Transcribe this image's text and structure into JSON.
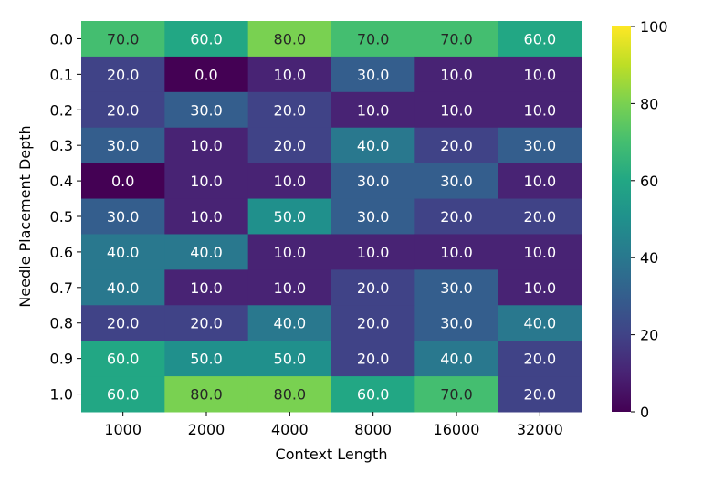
{
  "chart_data": {
    "type": "heatmap",
    "title": "",
    "xlabel": "Context Length",
    "ylabel": "Needle Placement Depth",
    "x": [
      "1000",
      "2000",
      "4000",
      "8000",
      "16000",
      "32000"
    ],
    "y": [
      "0.0",
      "0.1",
      "0.2",
      "0.3",
      "0.4",
      "0.5",
      "0.6",
      "0.7",
      "0.8",
      "0.9",
      "1.0"
    ],
    "values": [
      [
        70.0,
        60.0,
        80.0,
        70.0,
        70.0,
        60.0
      ],
      [
        20.0,
        0.0,
        10.0,
        30.0,
        10.0,
        10.0
      ],
      [
        20.0,
        30.0,
        20.0,
        10.0,
        10.0,
        10.0
      ],
      [
        30.0,
        10.0,
        20.0,
        40.0,
        20.0,
        30.0
      ],
      [
        0.0,
        10.0,
        10.0,
        30.0,
        30.0,
        10.0
      ],
      [
        30.0,
        10.0,
        50.0,
        30.0,
        20.0,
        20.0
      ],
      [
        40.0,
        40.0,
        10.0,
        10.0,
        10.0,
        10.0
      ],
      [
        40.0,
        10.0,
        10.0,
        20.0,
        30.0,
        10.0
      ],
      [
        20.0,
        20.0,
        40.0,
        20.0,
        30.0,
        40.0
      ],
      [
        60.0,
        50.0,
        50.0,
        20.0,
        40.0,
        20.0
      ],
      [
        60.0,
        80.0,
        80.0,
        60.0,
        70.0,
        20.0
      ]
    ],
    "value_format": "0.0",
    "colormap": "viridis",
    "vmin": 0,
    "vmax": 100,
    "colorbar_ticks": [
      0,
      20,
      40,
      60,
      80,
      100
    ],
    "grid": false,
    "legend": "colorbar-right"
  }
}
